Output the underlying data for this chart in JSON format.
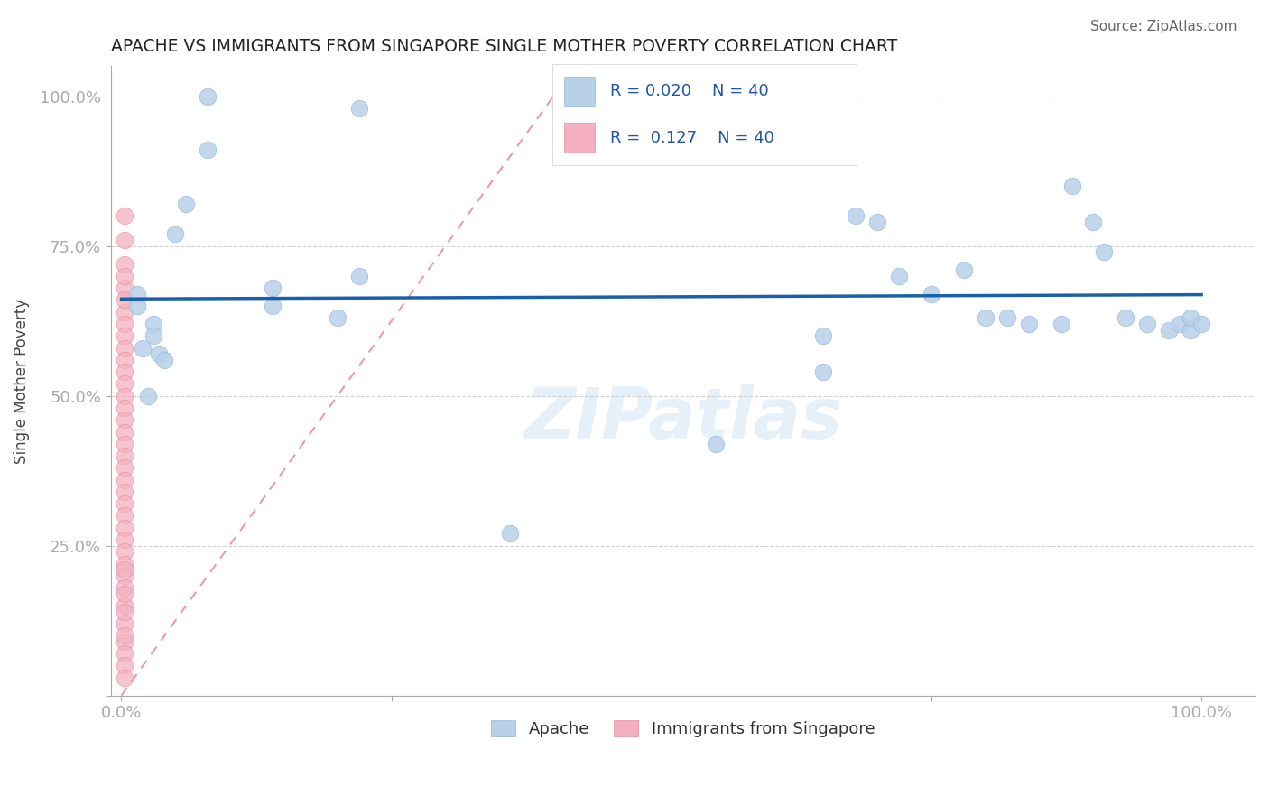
{
  "title": "APACHE VS IMMIGRANTS FROM SINGAPORE SINGLE MOTHER POVERTY CORRELATION CHART",
  "source": "Source: ZipAtlas.com",
  "ylabel": "Single Mother Poverty",
  "legend_apache": "Apache",
  "legend_singapore": "Immigrants from Singapore",
  "R_apache": 0.02,
  "N_apache": 40,
  "R_singapore": 0.127,
  "N_singapore": 40,
  "apache_x": [
    8.0,
    8.0,
    22.0,
    6.0,
    5.0,
    3.0,
    3.0,
    2.0,
    1.5,
    1.5,
    2.5,
    3.5,
    4.0,
    14.0,
    14.0,
    22.0,
    20.0,
    36.0,
    55.0,
    65.0,
    65.0,
    68.0,
    70.0,
    72.0,
    75.0,
    78.0,
    80.0,
    82.0,
    84.0,
    87.0,
    88.0,
    90.0,
    91.0,
    93.0,
    95.0,
    97.0,
    98.0,
    99.0,
    99.0,
    100.0
  ],
  "apache_y": [
    100.0,
    91.0,
    98.0,
    82.0,
    77.0,
    62.0,
    60.0,
    58.0,
    67.0,
    65.0,
    50.0,
    57.0,
    56.0,
    68.0,
    65.0,
    70.0,
    63.0,
    27.0,
    42.0,
    60.0,
    54.0,
    80.0,
    79.0,
    70.0,
    67.0,
    71.0,
    63.0,
    63.0,
    62.0,
    62.0,
    85.0,
    79.0,
    74.0,
    63.0,
    62.0,
    61.0,
    62.0,
    61.0,
    63.0,
    62.0
  ],
  "singapore_x": [
    0.3,
    0.3,
    0.3,
    0.3,
    0.3,
    0.3,
    0.3,
    0.3,
    0.3,
    0.3,
    0.3,
    0.3,
    0.3,
    0.3,
    0.3,
    0.3,
    0.3,
    0.3,
    0.3,
    0.3,
    0.3,
    0.3,
    0.3,
    0.3,
    0.3,
    0.3,
    0.3,
    0.3,
    0.3,
    0.3,
    0.3,
    0.3,
    0.3,
    0.3,
    0.3,
    0.3,
    0.3,
    0.3,
    0.3,
    0.3
  ],
  "singapore_y": [
    80.0,
    76.0,
    72.0,
    68.0,
    64.0,
    62.0,
    60.0,
    58.0,
    56.0,
    54.0,
    52.0,
    50.0,
    48.0,
    46.0,
    44.0,
    42.0,
    40.0,
    38.0,
    36.0,
    34.0,
    32.0,
    30.0,
    28.0,
    26.0,
    24.0,
    22.0,
    20.0,
    18.0,
    15.0,
    12.0,
    9.0,
    7.0,
    5.0,
    3.0,
    10.0,
    14.0,
    17.0,
    21.0,
    66.0,
    70.0
  ],
  "apache_color": "#b8d0e8",
  "apache_edge_color": "#90b8d8",
  "singapore_color": "#f4b0c0",
  "singapore_edge_color": "#e888a0",
  "apache_trend_color": "#1a5faa",
  "singapore_trend_color": "#e88898",
  "watermark_color": "#d0e4f4",
  "title_color": "#222222",
  "axis_label_color": "#444444",
  "tick_color": "#2255aa",
  "grid_color": "#cccccc",
  "source_color": "#666666",
  "background_color": "#ffffff",
  "ylim": [
    0.0,
    105.0
  ],
  "xlim": [
    -1.0,
    105.0
  ],
  "ytick_positions": [
    0.0,
    25.0,
    50.0,
    75.0,
    100.0
  ],
  "ytick_labels": [
    "",
    "25.0%",
    "50.0%",
    "75.0%",
    "100.0%"
  ],
  "xtick_positions": [
    0.0,
    25.0,
    50.0,
    75.0,
    100.0
  ],
  "xtick_labels": [
    "0.0%",
    "",
    "",
    "",
    "100.0%"
  ]
}
